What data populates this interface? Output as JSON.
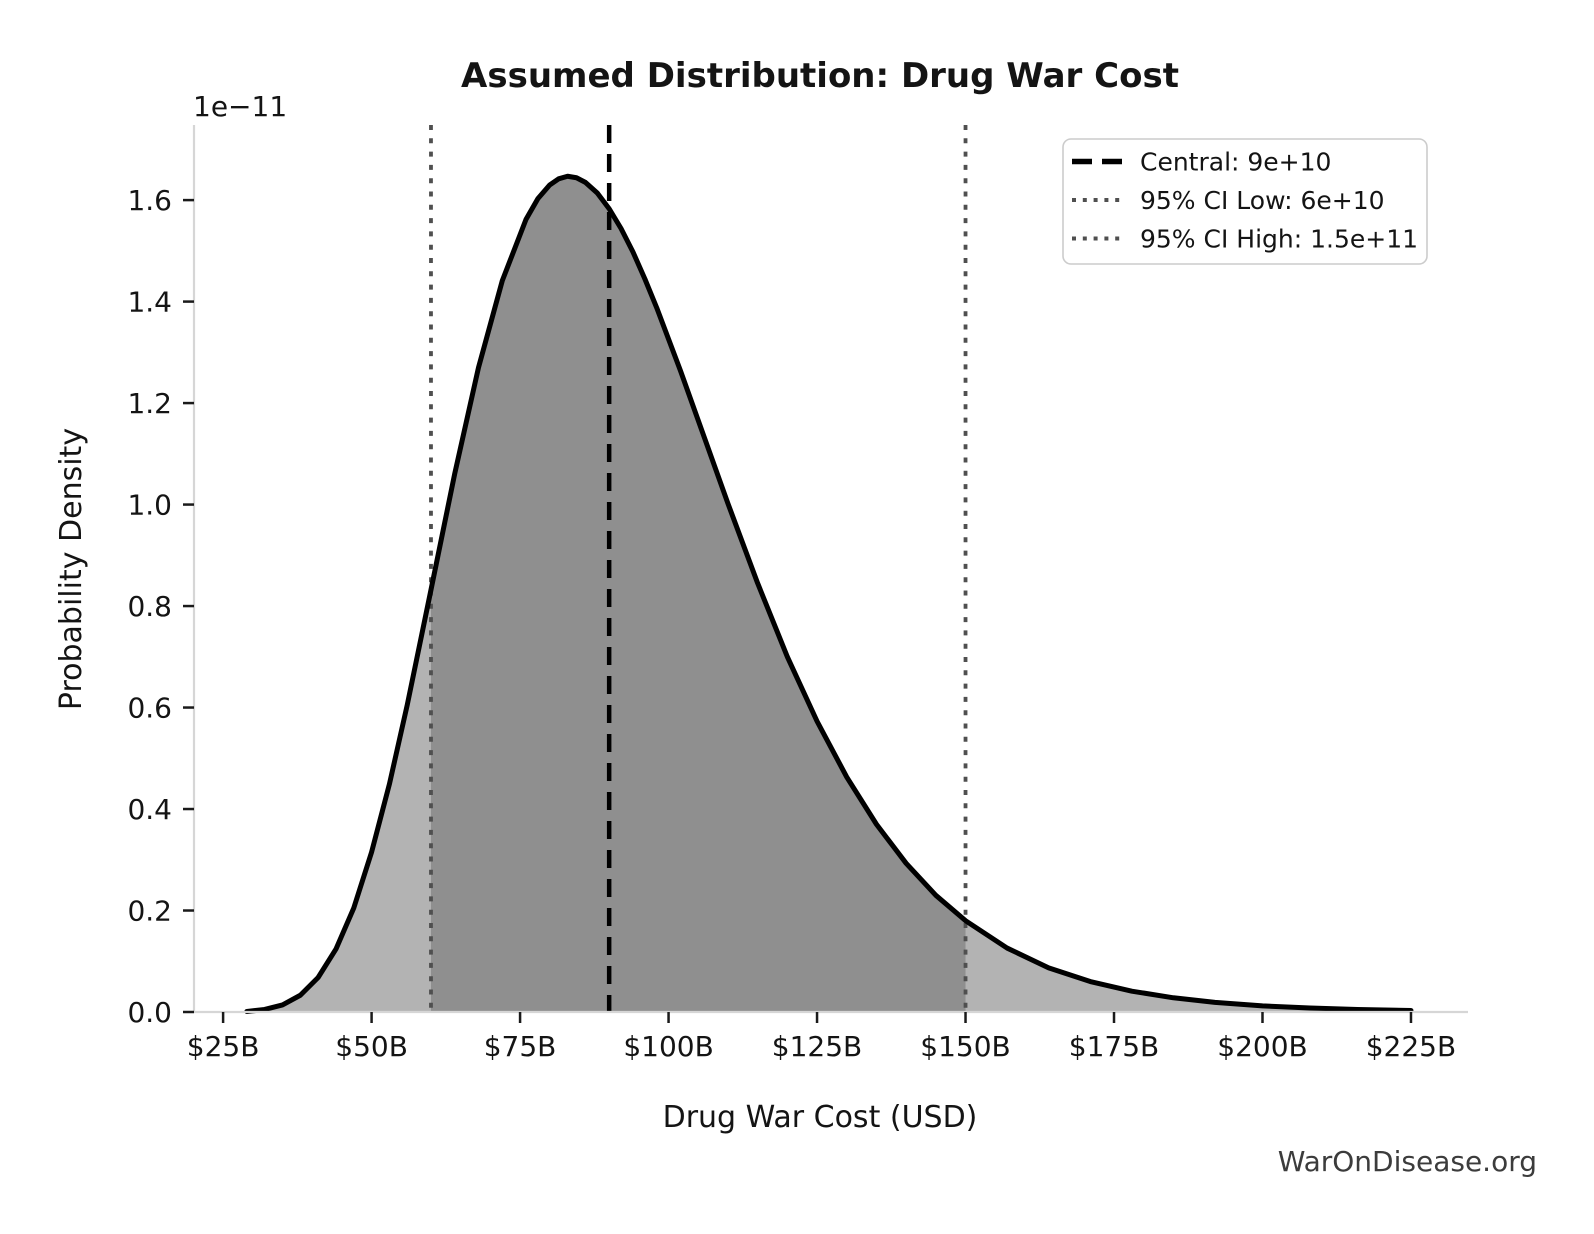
{
  "title": "Assumed Distribution: Drug War Cost",
  "watermark": "WarOnDisease.org",
  "chart_data": {
    "type": "area",
    "title": "Assumed Distribution: Drug War Cost",
    "xlabel": "Drug War Cost (USD)",
    "ylabel": "Probability Density",
    "y_axis_offset_label": "1e−11",
    "grid": false,
    "legend_position": "upper right",
    "x_ticks": {
      "values_billions": [
        25,
        50,
        75,
        100,
        125,
        150,
        175,
        200,
        225
      ],
      "labels": [
        "$25B",
        "$50B",
        "$75B",
        "$100B",
        "$125B",
        "$150B",
        "$175B",
        "$200B",
        "$225B"
      ]
    },
    "y_ticks": {
      "values": [
        0.0,
        0.2,
        0.4,
        0.6,
        0.8,
        1.0,
        1.2,
        1.4,
        1.6
      ],
      "labels": [
        "0.0",
        "0.2",
        "0.4",
        "0.6",
        "0.8",
        "1.0",
        "1.2",
        "1.4",
        "1.6"
      ],
      "scale_note": "densities in units of 1e-11"
    },
    "xlim_billions": [
      20.1,
      234.6
    ],
    "ylim": [
      0,
      1.748
    ],
    "markers": [
      {
        "name": "central",
        "label": "Central: 9e+10",
        "value_billions": 90,
        "style": "dashed",
        "color": "#000000"
      },
      {
        "name": "ci95-low",
        "label": "95% CI Low: 6e+10",
        "value_billions": 60,
        "style": "dotted",
        "color": "#4f4f4f"
      },
      {
        "name": "ci95-high",
        "label": "95% CI High: 1.5e+11",
        "value_billions": 150,
        "style": "dotted",
        "color": "#4f4f4f"
      }
    ],
    "ci_band_billions": [
      60,
      150
    ],
    "curve": {
      "x_billions": [
        29,
        32,
        35,
        38,
        41,
        44,
        47,
        50,
        53,
        56,
        60,
        64,
        68,
        72,
        76,
        78,
        80,
        81.5,
        83,
        84.5,
        86,
        88,
        90,
        92,
        94,
        96,
        98,
        102,
        106,
        110,
        115,
        120,
        125,
        130,
        135,
        140,
        145,
        150,
        157,
        164,
        171,
        178,
        185,
        192,
        200,
        208,
        216,
        225
      ],
      "density_1e11": [
        0.001,
        0.005,
        0.014,
        0.033,
        0.068,
        0.124,
        0.205,
        0.315,
        0.449,
        0.605,
        0.832,
        1.061,
        1.27,
        1.441,
        1.562,
        1.603,
        1.63,
        1.642,
        1.647,
        1.644,
        1.635,
        1.614,
        1.583,
        1.544,
        1.498,
        1.445,
        1.388,
        1.264,
        1.133,
        1.002,
        0.845,
        0.7,
        0.573,
        0.463,
        0.37,
        0.293,
        0.23,
        0.18,
        0.126,
        0.087,
        0.06,
        0.041,
        0.028,
        0.019,
        0.012,
        0.008,
        0.005,
        0.003
      ],
      "peak": {
        "x_billions": 83,
        "density_1e11": 1.647
      }
    },
    "colors": {
      "curve": "#000000",
      "fill_outer": "#b3b3b3",
      "fill_inner": "#8f8f8f",
      "spine": "#d6d6d6",
      "tick": "#1a1a1a",
      "legend_border": "#cccccc",
      "background": "#ffffff"
    }
  }
}
